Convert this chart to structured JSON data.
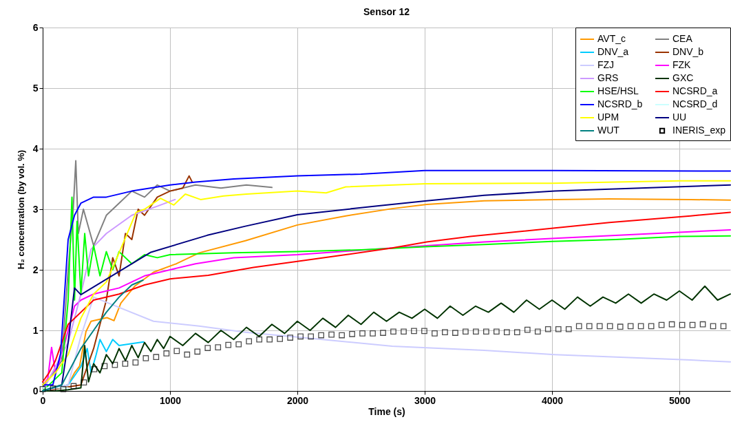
{
  "chart_data": {
    "type": "line",
    "title": "Sensor 12",
    "xlabel": "Time (s)",
    "ylabel": "H₂ concentration (by vol. %)",
    "xlim": [
      0,
      5400
    ],
    "xticks": [
      0,
      1000,
      2000,
      3000,
      4000,
      5000
    ],
    "ylim": [
      0,
      6
    ],
    "yticks": [
      0,
      1,
      2,
      3,
      4,
      5,
      6
    ],
    "grid": true,
    "legend": "top right",
    "line_style": "solid",
    "series": [
      {
        "name": "AVT_c",
        "color": "#ff9900",
        "x": [
          0,
          200,
          250,
          290,
          340,
          380,
          505,
          560,
          614,
          723,
          870,
          1050,
          1229,
          1592,
          2000,
          2380,
          2745,
          3016,
          3467,
          4022,
          4451,
          5087,
          5400
        ],
        "values": [
          0,
          0.1,
          0.3,
          0.41,
          0.98,
          1.15,
          1.21,
          1.16,
          1.45,
          1.73,
          1.96,
          2.1,
          2.28,
          2.48,
          2.74,
          2.89,
          3.01,
          3.08,
          3.14,
          3.16,
          3.17,
          3.16,
          3.15
        ]
      },
      {
        "name": "CEA",
        "color": "#808080",
        "x": [
          0,
          150,
          200,
          240,
          260,
          280,
          320,
          400,
          500,
          600,
          700,
          800,
          900,
          1000,
          1200,
          1400,
          1600,
          1800
        ],
        "values": [
          0.05,
          0.5,
          2.0,
          3.0,
          3.8,
          2.6,
          3.0,
          2.4,
          2.9,
          3.1,
          3.3,
          3.2,
          3.4,
          3.3,
          3.4,
          3.35,
          3.4,
          3.36
        ]
      },
      {
        "name": "DNV_a",
        "color": "#00ccff",
        "x": [
          0,
          200,
          300,
          350,
          380,
          420,
          450,
          500,
          550,
          600,
          700,
          793
        ],
        "values": [
          0,
          0.1,
          0.4,
          0.7,
          0.3,
          0.6,
          0.85,
          0.65,
          0.85,
          0.75,
          0.78,
          0.81
        ]
      },
      {
        "name": "DNV_b",
        "color": "#993300",
        "x": [
          0,
          300,
          400,
          500,
          550,
          600,
          650,
          700,
          750,
          800,
          900,
          1000,
          1100,
          1150,
          1174
        ],
        "values": [
          0,
          0.1,
          0.7,
          1.5,
          2.2,
          1.9,
          2.6,
          2.5,
          3.0,
          2.9,
          3.2,
          3.3,
          3.35,
          3.55,
          3.45
        ]
      },
      {
        "name": "FZJ",
        "color": "#ccccff",
        "x": [
          0,
          200,
          300,
          400,
          600,
          870,
          1229,
          1592,
          2000,
          2745,
          3467,
          4022,
          5087,
          5400
        ],
        "values": [
          0,
          0.1,
          0.9,
          1.55,
          1.38,
          1.15,
          1.07,
          0.97,
          0.89,
          0.74,
          0.67,
          0.6,
          0.51,
          0.48
        ]
      },
      {
        "name": "FZK",
        "color": "#ff00ff",
        "x": [
          0,
          40,
          70,
          100,
          150,
          200,
          250,
          300,
          400,
          500,
          600,
          800,
          1000,
          1200,
          1500,
          2000,
          2745,
          3467,
          4022,
          5400
        ],
        "values": [
          0.1,
          0.2,
          0.72,
          0.3,
          0.6,
          1.0,
          1.4,
          1.5,
          1.6,
          1.65,
          1.7,
          1.9,
          2.0,
          2.1,
          2.2,
          2.25,
          2.36,
          2.46,
          2.52,
          2.66
        ]
      },
      {
        "name": "GRS",
        "color": "#cc99ff",
        "x": [
          0,
          200,
          300,
          380,
          500,
          700,
          900,
          1040
        ],
        "values": [
          0,
          0.8,
          1.6,
          2.34,
          2.6,
          2.9,
          3.05,
          3.16
        ]
      },
      {
        "name": "GXC",
        "color": "#003300",
        "x": [
          0,
          100,
          200,
          300,
          330,
          360,
          400,
          450,
          500,
          550,
          600,
          650,
          700,
          750,
          800,
          850,
          900,
          950,
          1000,
          1100,
          1200,
          1300,
          1400,
          1500,
          1600,
          1700,
          1800,
          1900,
          2000,
          2100,
          2200,
          2300,
          2400,
          2500,
          2600,
          2700,
          2800,
          2900,
          3000,
          3100,
          3200,
          3300,
          3400,
          3500,
          3600,
          3700,
          3800,
          3900,
          4000,
          4100,
          4200,
          4300,
          4400,
          4500,
          4600,
          4700,
          4800,
          4900,
          5000,
          5100,
          5200,
          5300,
          5400
        ],
        "values": [
          0,
          0,
          0.02,
          0.05,
          0.75,
          0.15,
          0.45,
          0.3,
          0.6,
          0.45,
          0.7,
          0.5,
          0.75,
          0.55,
          0.8,
          0.65,
          0.85,
          0.7,
          0.9,
          0.75,
          0.95,
          0.8,
          1.0,
          0.85,
          1.05,
          0.9,
          1.1,
          0.95,
          1.15,
          1.0,
          1.2,
          1.05,
          1.25,
          1.1,
          1.3,
          1.15,
          1.3,
          1.2,
          1.35,
          1.2,
          1.4,
          1.25,
          1.4,
          1.3,
          1.45,
          1.3,
          1.5,
          1.35,
          1.5,
          1.35,
          1.55,
          1.4,
          1.55,
          1.45,
          1.6,
          1.45,
          1.6,
          1.5,
          1.65,
          1.5,
          1.73,
          1.5,
          1.6
        ]
      },
      {
        "name": "HSE/HSL",
        "color": "#00ff00",
        "x": [
          0,
          150,
          200,
          230,
          250,
          270,
          300,
          330,
          360,
          400,
          450,
          500,
          550,
          600,
          700,
          800,
          900,
          1000,
          1500,
          2000,
          2500,
          3000,
          3500,
          4000,
          4500,
          5000,
          5400
        ],
        "values": [
          0,
          0.3,
          1.5,
          3.2,
          1.5,
          2.8,
          1.6,
          2.6,
          1.9,
          2.4,
          1.9,
          2.3,
          2.0,
          2.3,
          2.1,
          2.25,
          2.2,
          2.25,
          2.28,
          2.3,
          2.33,
          2.38,
          2.42,
          2.47,
          2.5,
          2.55,
          2.56
        ]
      },
      {
        "name": "NCSRD_a",
        "color": "#ff0000",
        "x": [
          0,
          50,
          100,
          150,
          200,
          300,
          400,
          600,
          800,
          1000,
          1300,
          1656,
          2000,
          2380,
          2745,
          3016,
          3359,
          4022,
          4451,
          5087,
          5400
        ],
        "values": [
          0.15,
          0.3,
          0.5,
          0.8,
          1.1,
          1.3,
          1.5,
          1.6,
          1.75,
          1.85,
          1.91,
          2.04,
          2.14,
          2.25,
          2.36,
          2.46,
          2.55,
          2.69,
          2.78,
          2.89,
          2.95
        ]
      },
      {
        "name": "NCSRD_b",
        "color": "#0000ff",
        "x": [
          0,
          80,
          141,
          200,
          250,
          300,
          400,
          500,
          700,
          1000,
          1200,
          1500,
          2000,
          2500,
          3000,
          4000,
          5400
        ],
        "values": [
          0.1,
          0.1,
          0.62,
          2.5,
          2.9,
          3.1,
          3.2,
          3.2,
          3.3,
          3.4,
          3.45,
          3.5,
          3.55,
          3.58,
          3.64,
          3.64,
          3.63
        ]
      },
      {
        "name": "NCSRD_d",
        "color": "#ccffff",
        "x": [
          0,
          100,
          200
        ],
        "values": [
          0.05,
          0.05,
          0.05
        ]
      },
      {
        "name": "UPM",
        "color": "#ffff00",
        "x": [
          0,
          100,
          200,
          300,
          400,
          500,
          600,
          734,
          800,
          925,
          1030,
          1120,
          1240,
          1420,
          1600,
          2000,
          2226,
          2380,
          3000,
          4000,
          5000,
          5400
        ],
        "values": [
          0.1,
          0.3,
          0.6,
          1.2,
          1.6,
          1.8,
          2.28,
          2.95,
          3.0,
          3.18,
          3.07,
          3.25,
          3.16,
          3.22,
          3.25,
          3.3,
          3.27,
          3.37,
          3.42,
          3.43,
          3.47,
          3.47
        ]
      },
      {
        "name": "UU",
        "color": "#000080",
        "x": [
          0,
          150,
          200,
          250,
          300,
          850,
          1293,
          1592,
          2000,
          2652,
          3016,
          3467,
          4022,
          5400
        ],
        "values": [
          0,
          0.1,
          0.8,
          1.7,
          1.59,
          2.29,
          2.57,
          2.72,
          2.91,
          3.06,
          3.14,
          3.23,
          3.3,
          3.4
        ]
      },
      {
        "name": "WUT",
        "color": "#008080",
        "x": [
          0,
          150,
          200,
          300,
          400,
          500,
          600,
          700,
          788
        ],
        "values": [
          0,
          0.1,
          0.3,
          0.7,
          1.0,
          1.3,
          1.55,
          1.75,
          1.83
        ]
      },
      {
        "name": "INERIS_exp",
        "color": "#000000",
        "type": "scatter",
        "marker": "square",
        "x": [
          0,
          81,
          162,
          243,
          324,
          405,
          486,
          567,
          648,
          729,
          810,
          891,
          972,
          1053,
          1134,
          1215,
          1296,
          1377,
          1458,
          1539,
          1620,
          1701,
          1782,
          1863,
          1944,
          2025,
          2106,
          2187,
          2268,
          2349,
          2430,
          2511,
          2592,
          2673,
          2754,
          2835,
          2916,
          2997,
          3078,
          3159,
          3240,
          3321,
          3402,
          3483,
          3564,
          3645,
          3726,
          3807,
          3888,
          3969,
          4050,
          4131,
          4212,
          4293,
          4374,
          4455,
          4536,
          4617,
          4698,
          4779,
          4860,
          4941,
          5022,
          5103,
          5184,
          5265,
          5346
        ],
        "values": [
          0.03,
          0.04,
          0.03,
          0.08,
          0.14,
          0.36,
          0.41,
          0.43,
          0.45,
          0.47,
          0.54,
          0.56,
          0.62,
          0.66,
          0.6,
          0.65,
          0.71,
          0.72,
          0.76,
          0.77,
          0.82,
          0.85,
          0.85,
          0.86,
          0.88,
          0.9,
          0.9,
          0.92,
          0.93,
          0.92,
          0.94,
          0.95,
          0.95,
          0.96,
          0.98,
          0.98,
          0.99,
          0.99,
          0.95,
          0.97,
          0.96,
          0.98,
          0.98,
          0.98,
          0.98,
          0.97,
          0.97,
          1.01,
          0.98,
          1.02,
          1.02,
          1.02,
          1.07,
          1.07,
          1.07,
          1.07,
          1.06,
          1.07,
          1.07,
          1.07,
          1.09,
          1.1,
          1.09,
          1.09,
          1.1,
          1.07,
          1.07
        ]
      }
    ]
  }
}
